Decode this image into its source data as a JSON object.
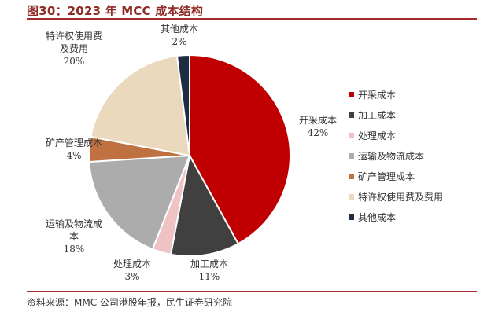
{
  "figure": {
    "title": "图30：2023 年 MCC 成本结构",
    "source": "资料来源：MMC 公司港股年报，民生证券研究院"
  },
  "chart_data": {
    "type": "pie",
    "title": "",
    "start_angle_deg": 0,
    "direction": "clockwise",
    "legend_position": "right",
    "slices": [
      {
        "name": "开采成本",
        "value": 42,
        "label": "42%",
        "color": "#c00000",
        "label_lines": [
          "开采成本",
          "42%"
        ]
      },
      {
        "name": "加工成本",
        "value": 11,
        "label": "11%",
        "color": "#404040",
        "label_lines": [
          "加工成本",
          "11%"
        ]
      },
      {
        "name": "处理成本",
        "value": 3,
        "label": "3%",
        "color": "#efc3c3",
        "label_lines": [
          "处理成本",
          "3%"
        ]
      },
      {
        "name": "运输及物流成本",
        "value": 18,
        "label": "18%",
        "color": "#acacac",
        "label_lines": [
          "运输及物流成",
          "本",
          "18%"
        ]
      },
      {
        "name": "矿产管理成本",
        "value": 4,
        "label": "4%",
        "color": "#c07141",
        "label_lines": [
          "矿产管理成本",
          "4%"
        ]
      },
      {
        "name": "特许权使用费及费用",
        "value": 20,
        "label": "20%",
        "color": "#ead9bc",
        "label_lines": [
          "特许权使用费",
          "及费用",
          "20%"
        ]
      },
      {
        "name": "其他成本",
        "value": 2,
        "label": "2%",
        "color": "#1f2d44",
        "label_lines": [
          "其他成本",
          "2%"
        ]
      }
    ]
  }
}
